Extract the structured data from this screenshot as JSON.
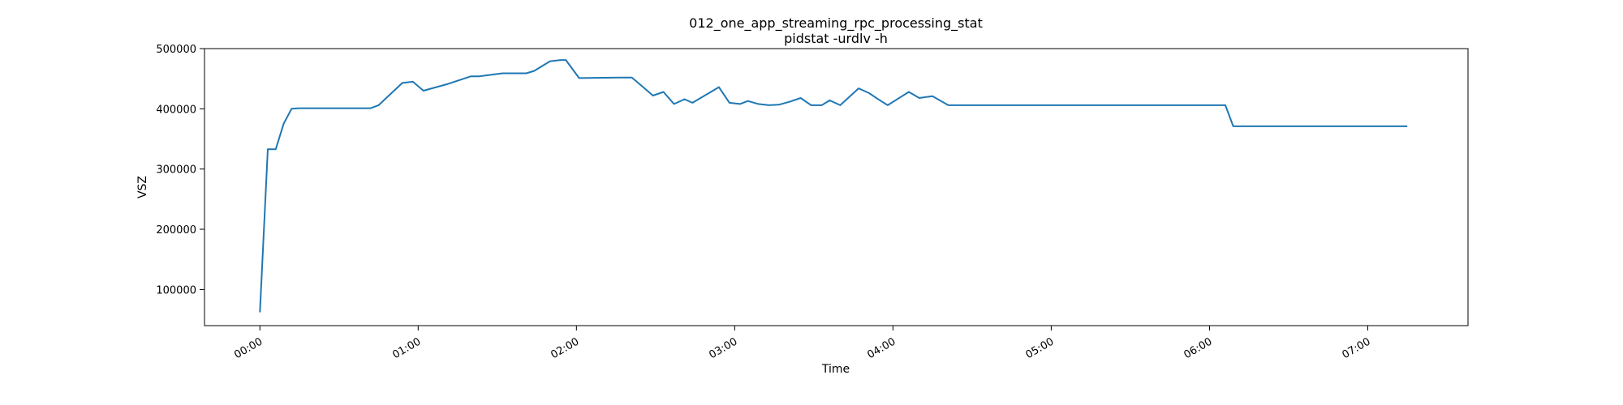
{
  "chart_data": {
    "type": "line",
    "title": "012_one_app_streaming_rpc_processing_stat",
    "subtitle": "pidstat -urdlv -h",
    "xlabel": "Time",
    "ylabel": "VSZ",
    "grid": false,
    "x_ticks": [
      "00:00",
      "01:00",
      "02:00",
      "03:00",
      "04:00",
      "05:00",
      "06:00",
      "07:00"
    ],
    "y_ticks": [
      100000,
      200000,
      300000,
      400000,
      500000
    ],
    "xlim_minutes": [
      -21,
      458
    ],
    "ylim": [
      40000,
      500000
    ],
    "series": [
      {
        "color": "#1f77b4",
        "x_minutes": [
          0,
          3,
          6,
          9,
          12,
          15,
          30,
          42,
          45,
          54,
          58,
          62,
          71,
          80,
          83,
          92,
          101,
          104,
          110,
          114,
          116,
          121,
          137,
          141,
          145,
          149,
          153,
          157,
          161,
          164,
          174,
          178,
          182,
          185,
          189,
          193,
          197,
          201,
          205,
          209,
          213,
          216,
          220,
          223,
          227,
          231,
          234,
          238,
          242,
          246,
          250,
          255,
          261,
          366,
          369,
          435
        ],
        "y": [
          62000,
          333000,
          333000,
          375000,
          400000,
          401000,
          401000,
          401000,
          406000,
          443000,
          445000,
          430000,
          441000,
          454000,
          454000,
          459000,
          459000,
          463000,
          479000,
          481000,
          481000,
          451000,
          452000,
          452000,
          437000,
          422000,
          428000,
          408000,
          416000,
          410000,
          436000,
          410000,
          408000,
          413000,
          408000,
          406000,
          407000,
          412000,
          418000,
          406000,
          406000,
          414000,
          406000,
          418000,
          434000,
          426000,
          417000,
          406000,
          417000,
          428000,
          418000,
          421000,
          406000,
          406000,
          371000,
          371000
        ]
      }
    ]
  }
}
